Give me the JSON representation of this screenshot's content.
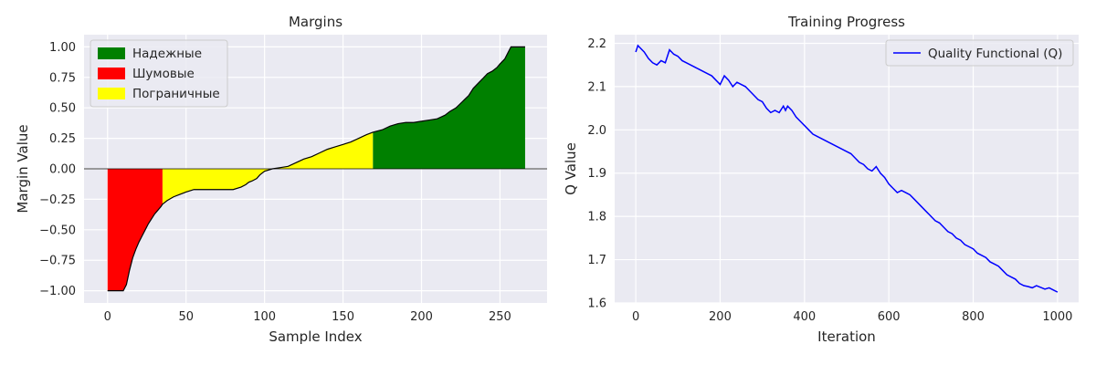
{
  "chart_data": [
    {
      "type": "area",
      "title": "Margins",
      "xlabel": "Sample Index",
      "ylabel": "Margin Value",
      "xlim": [
        -15,
        280
      ],
      "ylim": [
        -1.1,
        1.1
      ],
      "xticks": [
        0,
        50,
        100,
        150,
        200,
        250
      ],
      "yticks": [
        -1.0,
        -0.75,
        -0.5,
        -0.25,
        0.0,
        0.25,
        0.5,
        0.75,
        1.0
      ],
      "ytick_labels": [
        "−1.00",
        "−0.75",
        "−0.50",
        "−0.25",
        "0.00",
        "0.25",
        "0.50",
        "0.75",
        "1.00"
      ],
      "grid": true,
      "legend_position": "top-left",
      "series": [
        {
          "name": "Надежные",
          "color": "#008000",
          "x_range": [
            169,
            266
          ]
        },
        {
          "name": "Шумовые",
          "color": "#ff0000",
          "x_range": [
            0,
            35
          ]
        },
        {
          "name": "Пограничные",
          "color": "#ffff00",
          "x_range": [
            35,
            169
          ]
        }
      ],
      "x": [
        0,
        5,
        10,
        12,
        14,
        16,
        18,
        20,
        22,
        24,
        26,
        28,
        30,
        32,
        34,
        35,
        38,
        42,
        46,
        50,
        55,
        60,
        70,
        80,
        85,
        88,
        90,
        92,
        95,
        97,
        100,
        105,
        110,
        115,
        120,
        125,
        130,
        135,
        140,
        145,
        150,
        155,
        160,
        165,
        169,
        175,
        180,
        185,
        190,
        195,
        200,
        205,
        210,
        215,
        218,
        222,
        226,
        230,
        233,
        236,
        239,
        242,
        245,
        248,
        250,
        253,
        255,
        257,
        260,
        263,
        266
      ],
      "y": [
        -1.0,
        -1.0,
        -1.0,
        -0.95,
        -0.83,
        -0.73,
        -0.66,
        -0.6,
        -0.55,
        -0.5,
        -0.45,
        -0.41,
        -0.37,
        -0.34,
        -0.31,
        -0.29,
        -0.26,
        -0.23,
        -0.21,
        -0.19,
        -0.17,
        -0.17,
        -0.17,
        -0.17,
        -0.15,
        -0.13,
        -0.11,
        -0.1,
        -0.08,
        -0.05,
        -0.02,
        0.0,
        0.01,
        0.02,
        0.05,
        0.08,
        0.1,
        0.13,
        0.16,
        0.18,
        0.2,
        0.22,
        0.25,
        0.28,
        0.3,
        0.32,
        0.35,
        0.37,
        0.38,
        0.38,
        0.39,
        0.4,
        0.41,
        0.44,
        0.47,
        0.5,
        0.55,
        0.6,
        0.66,
        0.7,
        0.74,
        0.78,
        0.8,
        0.83,
        0.86,
        0.9,
        0.95,
        1.0,
        1.0,
        1.0,
        1.0
      ]
    },
    {
      "type": "line",
      "title": "Training Progress",
      "xlabel": "Iteration",
      "ylabel": "Q Value",
      "xlim": [
        -50,
        1050
      ],
      "ylim": [
        1.6,
        2.22
      ],
      "xticks": [
        0,
        200,
        400,
        600,
        800,
        1000
      ],
      "yticks": [
        1.6,
        1.7,
        1.8,
        1.9,
        2.0,
        2.1,
        2.2
      ],
      "grid": true,
      "legend_position": "top-right",
      "series": [
        {
          "name": "Quality Functional (Q)",
          "color": "#0000ff",
          "x": [
            0,
            5,
            10,
            20,
            30,
            40,
            50,
            60,
            70,
            80,
            90,
            100,
            110,
            120,
            130,
            140,
            150,
            160,
            170,
            180,
            190,
            200,
            210,
            220,
            230,
            240,
            250,
            260,
            270,
            280,
            290,
            300,
            310,
            320,
            330,
            340,
            350,
            355,
            360,
            370,
            380,
            390,
            400,
            410,
            420,
            430,
            440,
            450,
            460,
            470,
            480,
            490,
            500,
            510,
            520,
            530,
            540,
            550,
            560,
            570,
            580,
            590,
            600,
            610,
            620,
            630,
            640,
            650,
            660,
            670,
            680,
            690,
            700,
            710,
            720,
            730,
            740,
            750,
            760,
            770,
            780,
            790,
            800,
            810,
            820,
            830,
            840,
            850,
            860,
            870,
            880,
            890,
            900,
            910,
            920,
            930,
            940,
            950,
            960,
            970,
            980,
            990,
            1000
          ],
          "y": [
            2.18,
            2.195,
            2.19,
            2.18,
            2.165,
            2.155,
            2.15,
            2.16,
            2.155,
            2.185,
            2.175,
            2.17,
            2.16,
            2.155,
            2.15,
            2.145,
            2.14,
            2.135,
            2.13,
            2.125,
            2.115,
            2.105,
            2.125,
            2.115,
            2.1,
            2.11,
            2.105,
            2.1,
            2.09,
            2.08,
            2.07,
            2.065,
            2.05,
            2.04,
            2.045,
            2.04,
            2.055,
            2.045,
            2.055,
            2.045,
            2.03,
            2.02,
            2.01,
            2.0,
            1.99,
            1.985,
            1.98,
            1.975,
            1.97,
            1.965,
            1.96,
            1.955,
            1.95,
            1.945,
            1.935,
            1.925,
            1.92,
            1.91,
            1.905,
            1.915,
            1.9,
            1.89,
            1.875,
            1.865,
            1.855,
            1.86,
            1.855,
            1.85,
            1.84,
            1.83,
            1.82,
            1.81,
            1.8,
            1.79,
            1.785,
            1.775,
            1.765,
            1.76,
            1.75,
            1.745,
            1.735,
            1.73,
            1.725,
            1.715,
            1.71,
            1.705,
            1.695,
            1.69,
            1.685,
            1.675,
            1.665,
            1.66,
            1.655,
            1.645,
            1.64,
            1.638,
            1.635,
            1.64,
            1.636,
            1.632,
            1.635,
            1.63,
            1.625
          ]
        }
      ]
    }
  ]
}
